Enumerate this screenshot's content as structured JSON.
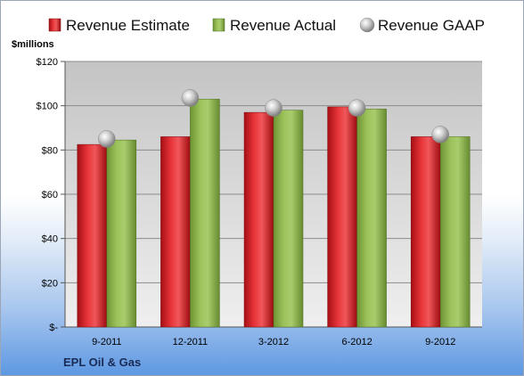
{
  "chart_data": {
    "type": "bar",
    "title": "",
    "unit_label": "$millions",
    "categories": [
      "9-2011",
      "12-2011",
      "3-2012",
      "6-2012",
      "9-2012"
    ],
    "series": [
      {
        "name": "Revenue Estimate",
        "kind": "bar",
        "color": "#d11f26",
        "values": [
          82.5,
          86,
          97,
          99.5,
          86
        ]
      },
      {
        "name": "Revenue Actual",
        "kind": "bar",
        "color": "#8ab34a",
        "values": [
          84.5,
          103,
          98,
          98.5,
          86
        ]
      },
      {
        "name": "Revenue GAAP",
        "kind": "marker",
        "color": "#b8b8b8",
        "values": [
          85,
          103.5,
          99,
          99,
          87
        ]
      }
    ],
    "ylim": [
      0,
      120
    ],
    "yticks": [
      0,
      20,
      40,
      60,
      80,
      100,
      120
    ],
    "ytick_labels": [
      "$-",
      "$20",
      "$40",
      "$60",
      "$80",
      "$100",
      "$120"
    ],
    "grid": true,
    "legend_position": "top"
  },
  "footer": {
    "company": "EPL Oil & Gas"
  }
}
